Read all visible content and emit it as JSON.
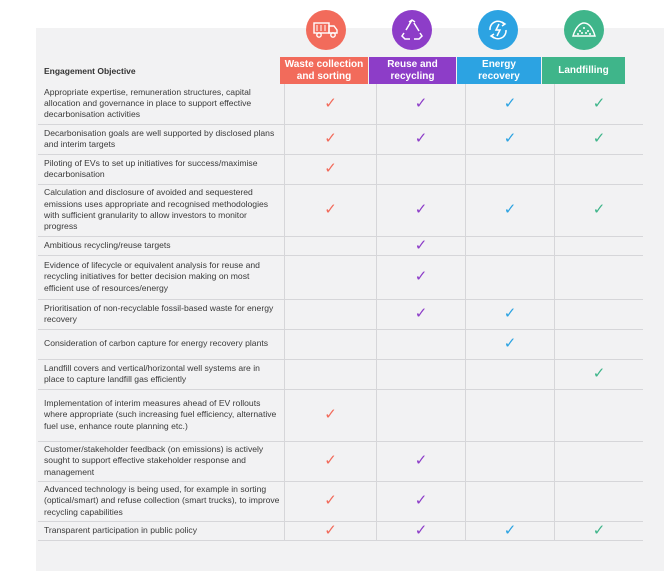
{
  "header": {
    "objective_label": "Engagement Objective",
    "columns": [
      {
        "label_lines": [
          "Waste collection",
          "and sorting"
        ],
        "color": "#f26b5b",
        "icon": "garbage-truck-icon"
      },
      {
        "label_lines": [
          "Reuse and",
          "recycling"
        ],
        "color": "#8d3dc8",
        "icon": "recycle-icon"
      },
      {
        "label_lines": [
          "Energy",
          "recovery"
        ],
        "color": "#2ca3e2",
        "icon": "energy-cycle-icon"
      },
      {
        "label_lines": [
          "Landfilling"
        ],
        "color": "#3fb58a",
        "icon": "landfill-icon"
      }
    ]
  },
  "rows": [
    {
      "objective": "Appropriate expertise, remuneration structures, capital allocation and governance in place to support effective decarbonisation activities",
      "checks": [
        true,
        true,
        true,
        true
      ]
    },
    {
      "objective": "Decarbonisation goals are well supported by disclosed plans and interim targets",
      "checks": [
        true,
        true,
        true,
        true
      ]
    },
    {
      "objective": "Piloting of EVs to set up initiatives for success/maximise decarbonisation",
      "checks": [
        true,
        false,
        false,
        false
      ]
    },
    {
      "objective": "Calculation and disclosure of avoided and sequestered emissions uses appropriate and recognised methodologies with sufficient granularity to allow investors to monitor progress",
      "checks": [
        true,
        true,
        true,
        true
      ]
    },
    {
      "objective": "Ambitious recycling/reuse targets",
      "checks": [
        false,
        true,
        false,
        false
      ]
    },
    {
      "objective": "Evidence of lifecycle or equivalent analysis for reuse and recycling initiatives for better decision making on most efficient use of resources/energy",
      "checks": [
        false,
        true,
        false,
        false
      ]
    },
    {
      "objective": "Prioritisation of non-recyclable fossil-based waste for energy recovery",
      "checks": [
        false,
        true,
        true,
        false
      ]
    },
    {
      "objective": "Consideration of carbon capture for energy recovery plants",
      "checks": [
        false,
        false,
        true,
        false
      ]
    },
    {
      "objective": "Landfill covers and vertical/horizontal well systems are in place to capture landfill gas efficiently",
      "checks": [
        false,
        false,
        false,
        true
      ]
    },
    {
      "objective": "Implementation of interim measures ahead of EV rollouts where appropriate (such increasing fuel efficiency, alternative fuel use, enhance route planning etc.)",
      "checks": [
        true,
        false,
        false,
        false
      ]
    },
    {
      "objective": "Customer/stakeholder feedback (on emissions) is actively sought to support effective stakeholder response and management",
      "checks": [
        true,
        true,
        false,
        false
      ]
    },
    {
      "objective": "Advanced technology is being used, for example in sorting (optical/smart) and refuse collection (smart trucks), to improve recycling capabilities",
      "checks": [
        true,
        true,
        false,
        false
      ]
    },
    {
      "objective": "Transparent participation in public policy",
      "checks": [
        true,
        true,
        true,
        true
      ]
    }
  ],
  "tick_glyph": "✓"
}
